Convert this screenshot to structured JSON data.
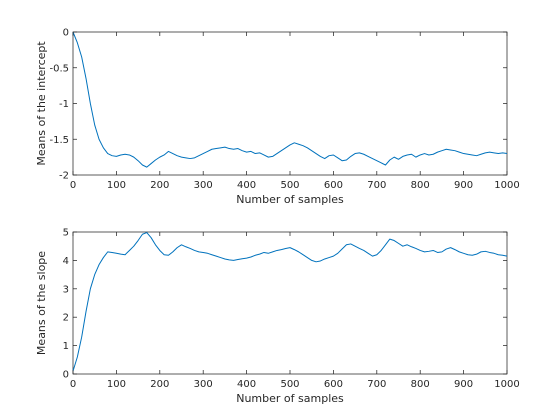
{
  "chart_data": [
    {
      "type": "line",
      "title": "",
      "xlabel": "Number of samples",
      "ylabel": "Means of the intercept",
      "xlim": [
        0,
        1000
      ],
      "ylim": [
        -2,
        0
      ],
      "xticks": [
        0,
        100,
        200,
        300,
        400,
        500,
        600,
        700,
        800,
        900,
        1000
      ],
      "xtick_labels": [
        "0",
        "100",
        "200",
        "300",
        "400",
        "500",
        "600",
        "700",
        "800",
        "900",
        "1000"
      ],
      "yticks": [
        -2,
        -1.5,
        -1,
        -0.5,
        0
      ],
      "ytick_labels": [
        "-2",
        "-1.5",
        "-1",
        "-0.5",
        "0"
      ],
      "grid": false,
      "series": [
        {
          "color": "#0072bd",
          "x": [
            0,
            10,
            20,
            30,
            40,
            50,
            60,
            70,
            80,
            90,
            100,
            110,
            120,
            130,
            140,
            150,
            160,
            170,
            180,
            190,
            200,
            210,
            220,
            230,
            240,
            250,
            260,
            270,
            280,
            290,
            300,
            310,
            320,
            330,
            340,
            350,
            360,
            370,
            380,
            390,
            400,
            410,
            420,
            430,
            440,
            450,
            460,
            470,
            480,
            490,
            500,
            510,
            520,
            530,
            540,
            550,
            560,
            570,
            580,
            590,
            600,
            610,
            620,
            630,
            640,
            650,
            660,
            670,
            680,
            690,
            700,
            710,
            720,
            730,
            740,
            750,
            760,
            770,
            780,
            790,
            800,
            810,
            820,
            830,
            840,
            850,
            860,
            870,
            880,
            890,
            900,
            910,
            920,
            930,
            940,
            950,
            960,
            970,
            980,
            990,
            1000
          ],
          "y": [
            0,
            -0.15,
            -0.35,
            -0.65,
            -1.0,
            -1.3,
            -1.5,
            -1.62,
            -1.7,
            -1.73,
            -1.74,
            -1.72,
            -1.71,
            -1.72,
            -1.75,
            -1.8,
            -1.86,
            -1.89,
            -1.84,
            -1.79,
            -1.75,
            -1.72,
            -1.67,
            -1.7,
            -1.73,
            -1.75,
            -1.76,
            -1.77,
            -1.76,
            -1.73,
            -1.7,
            -1.67,
            -1.64,
            -1.63,
            -1.62,
            -1.61,
            -1.63,
            -1.64,
            -1.63,
            -1.66,
            -1.68,
            -1.67,
            -1.7,
            -1.69,
            -1.72,
            -1.75,
            -1.74,
            -1.7,
            -1.66,
            -1.62,
            -1.58,
            -1.55,
            -1.57,
            -1.59,
            -1.62,
            -1.66,
            -1.7,
            -1.74,
            -1.77,
            -1.73,
            -1.72,
            -1.76,
            -1.8,
            -1.79,
            -1.74,
            -1.7,
            -1.69,
            -1.71,
            -1.74,
            -1.77,
            -1.8,
            -1.83,
            -1.86,
            -1.79,
            -1.75,
            -1.78,
            -1.74,
            -1.72,
            -1.71,
            -1.75,
            -1.72,
            -1.7,
            -1.72,
            -1.71,
            -1.68,
            -1.66,
            -1.64,
            -1.65,
            -1.66,
            -1.68,
            -1.7,
            -1.71,
            -1.72,
            -1.73,
            -1.71,
            -1.69,
            -1.68,
            -1.69,
            -1.7,
            -1.69,
            -1.7
          ]
        }
      ]
    },
    {
      "type": "line",
      "title": "",
      "xlabel": "Number of samples",
      "ylabel": "Means of the slope",
      "xlim": [
        0,
        1000
      ],
      "ylim": [
        0,
        5
      ],
      "xticks": [
        0,
        100,
        200,
        300,
        400,
        500,
        600,
        700,
        800,
        900,
        1000
      ],
      "xtick_labels": [
        "0",
        "100",
        "200",
        "300",
        "400",
        "500",
        "600",
        "700",
        "800",
        "900",
        "1000"
      ],
      "yticks": [
        0,
        1,
        2,
        3,
        4,
        5
      ],
      "ytick_labels": [
        "0",
        "1",
        "2",
        "3",
        "4",
        "5"
      ],
      "grid": false,
      "series": [
        {
          "color": "#0072bd",
          "x": [
            0,
            10,
            20,
            30,
            40,
            50,
            60,
            70,
            80,
            90,
            100,
            110,
            120,
            130,
            140,
            150,
            160,
            170,
            180,
            190,
            200,
            210,
            220,
            230,
            240,
            250,
            260,
            270,
            280,
            290,
            300,
            310,
            320,
            330,
            340,
            350,
            360,
            370,
            380,
            390,
            400,
            410,
            420,
            430,
            440,
            450,
            460,
            470,
            480,
            490,
            500,
            510,
            520,
            530,
            540,
            550,
            560,
            570,
            580,
            590,
            600,
            610,
            620,
            630,
            640,
            650,
            660,
            670,
            680,
            690,
            700,
            710,
            720,
            730,
            740,
            750,
            760,
            770,
            780,
            790,
            800,
            810,
            820,
            830,
            840,
            850,
            860,
            870,
            880,
            890,
            900,
            910,
            920,
            930,
            940,
            950,
            960,
            970,
            980,
            990,
            1000
          ],
          "y": [
            0.1,
            0.6,
            1.3,
            2.2,
            3.0,
            3.5,
            3.85,
            4.1,
            4.3,
            4.28,
            4.25,
            4.22,
            4.2,
            4.35,
            4.5,
            4.7,
            4.92,
            4.98,
            4.8,
            4.55,
            4.35,
            4.2,
            4.18,
            4.3,
            4.45,
            4.55,
            4.48,
            4.42,
            4.35,
            4.3,
            4.28,
            4.25,
            4.2,
            4.15,
            4.1,
            4.05,
            4.02,
            4.0,
            4.03,
            4.06,
            4.08,
            4.12,
            4.18,
            4.22,
            4.28,
            4.25,
            4.3,
            4.35,
            4.38,
            4.42,
            4.45,
            4.38,
            4.3,
            4.2,
            4.1,
            4.0,
            3.95,
            3.98,
            4.05,
            4.1,
            4.15,
            4.25,
            4.4,
            4.55,
            4.58,
            4.5,
            4.42,
            4.35,
            4.25,
            4.15,
            4.2,
            4.35,
            4.55,
            4.75,
            4.7,
            4.6,
            4.5,
            4.55,
            4.48,
            4.42,
            4.35,
            4.3,
            4.32,
            4.35,
            4.28,
            4.3,
            4.4,
            4.45,
            4.38,
            4.3,
            4.25,
            4.2,
            4.18,
            4.22,
            4.3,
            4.32,
            4.28,
            4.25,
            4.2,
            4.18,
            4.15
          ]
        }
      ]
    }
  ]
}
